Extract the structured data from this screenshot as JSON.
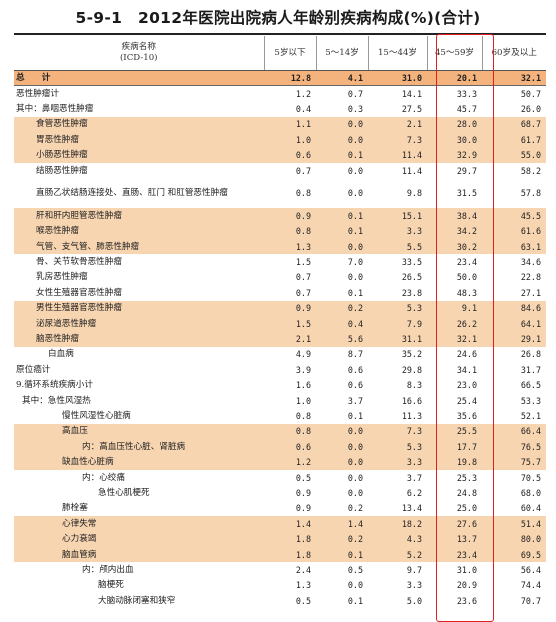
{
  "title": "5-9-1　2012年医院出院病人年龄别疾病构成(%)(合计)",
  "header": {
    "name_col": "疾病名称\n(ICD-10)",
    "age_cols": [
      "5岁以下",
      "5～14岁",
      "15～44岁",
      "45～59岁",
      "60岁及以上"
    ]
  },
  "rows": [
    {
      "name": "总　　计",
      "indent": 0,
      "style": "total",
      "values": [
        "12.8",
        "4.1",
        "31.0",
        "20.1",
        "32.1"
      ]
    },
    {
      "name": "恶性肿瘤计",
      "indent": 0,
      "style": "",
      "values": [
        "1.2",
        "0.7",
        "14.1",
        "33.3",
        "50.7"
      ]
    },
    {
      "name": "其中：鼻咽恶性肿瘤",
      "indent": 0,
      "style": "",
      "values": [
        "0.4",
        "0.3",
        "27.5",
        "45.7",
        "26.0"
      ]
    },
    {
      "name": "食管恶性肿瘤",
      "indent": 2,
      "style": "hl",
      "values": [
        "1.1",
        "0.0",
        "2.1",
        "28.0",
        "68.7"
      ]
    },
    {
      "name": "胃恶性肿瘤",
      "indent": 2,
      "style": "hl",
      "values": [
        "1.0",
        "0.0",
        "7.3",
        "30.0",
        "61.7"
      ]
    },
    {
      "name": "小肠恶性肿瘤",
      "indent": 2,
      "style": "hl",
      "values": [
        "0.6",
        "0.1",
        "11.4",
        "32.9",
        "55.0"
      ]
    },
    {
      "name": "结肠恶性肿瘤",
      "indent": 2,
      "style": "",
      "values": [
        "0.7",
        "0.0",
        "11.4",
        "29.7",
        "58.2"
      ]
    },
    {
      "name": "直肠乙状结肠连接处、直肠、肛门\n和肛管恶性肿瘤",
      "indent": 2,
      "style": "tall",
      "values": [
        "0.8",
        "0.0",
        "9.8",
        "31.5",
        "57.8"
      ]
    },
    {
      "name": "肝和肝内胆管恶性肿瘤",
      "indent": 2,
      "style": "hl",
      "values": [
        "0.9",
        "0.1",
        "15.1",
        "38.4",
        "45.5"
      ]
    },
    {
      "name": "喉恶性肿瘤",
      "indent": 2,
      "style": "hl",
      "values": [
        "0.8",
        "0.1",
        "3.3",
        "34.2",
        "61.6"
      ]
    },
    {
      "name": "气管、支气管、肺恶性肿瘤",
      "indent": 2,
      "style": "hl",
      "values": [
        "1.3",
        "0.0",
        "5.5",
        "30.2",
        "63.1"
      ]
    },
    {
      "name": "骨、关节软骨恶性肿瘤",
      "indent": 2,
      "style": "",
      "values": [
        "1.5",
        "7.0",
        "33.5",
        "23.4",
        "34.6"
      ]
    },
    {
      "name": "乳房恶性肿瘤",
      "indent": 2,
      "style": "",
      "values": [
        "0.7",
        "0.0",
        "26.5",
        "50.0",
        "22.8"
      ]
    },
    {
      "name": "女性生殖器官恶性肿瘤",
      "indent": 2,
      "style": "",
      "values": [
        "0.7",
        "0.1",
        "23.8",
        "48.3",
        "27.1"
      ]
    },
    {
      "name": "男性生殖器官恶性肿瘤",
      "indent": 2,
      "style": "hl",
      "values": [
        "0.9",
        "0.2",
        "5.3",
        "9.1",
        "84.6"
      ]
    },
    {
      "name": "泌尿道恶性肿瘤",
      "indent": 2,
      "style": "hl",
      "values": [
        "1.5",
        "0.4",
        "7.9",
        "26.2",
        "64.1"
      ]
    },
    {
      "name": "脑恶性肿瘤",
      "indent": 2,
      "style": "hl",
      "values": [
        "2.1",
        "5.6",
        "31.1",
        "32.1",
        "29.1"
      ]
    },
    {
      "name": "白血病",
      "indent": 3,
      "style": "",
      "values": [
        "4.9",
        "8.7",
        "35.2",
        "24.6",
        "26.8"
      ]
    },
    {
      "name": "原位癌计",
      "indent": 0,
      "style": "",
      "values": [
        "3.9",
        "0.6",
        "29.8",
        "34.1",
        "31.7"
      ]
    },
    {
      "name": "9.循环系统疾病小计",
      "indent": 0,
      "style": "",
      "values": [
        "1.6",
        "0.6",
        "8.3",
        "23.0",
        "66.5"
      ]
    },
    {
      "name": "其中：急性风湿热",
      "indent": 1,
      "style": "",
      "values": [
        "1.0",
        "3.7",
        "16.6",
        "25.4",
        "53.3"
      ]
    },
    {
      "name": "慢性风湿性心脏病",
      "indent": 4,
      "style": "",
      "values": [
        "0.8",
        "0.1",
        "11.3",
        "35.6",
        "52.1"
      ]
    },
    {
      "name": "高血压",
      "indent": 4,
      "style": "hl",
      "values": [
        "0.8",
        "0.0",
        "7.3",
        "25.5",
        "66.4"
      ]
    },
    {
      "name": "内：高血压性心脏、肾脏病",
      "indent": 5,
      "style": "hl",
      "values": [
        "0.6",
        "0.0",
        "5.3",
        "17.7",
        "76.5"
      ]
    },
    {
      "name": "缺血性心脏病",
      "indent": 4,
      "style": "hl",
      "values": [
        "1.2",
        "0.0",
        "3.3",
        "19.8",
        "75.7"
      ]
    },
    {
      "name": "内：心绞痛",
      "indent": 5,
      "style": "",
      "values": [
        "0.5",
        "0.0",
        "3.7",
        "25.3",
        "70.5"
      ]
    },
    {
      "name": "急性心肌梗死",
      "indent": 6,
      "style": "",
      "values": [
        "0.9",
        "0.0",
        "6.2",
        "24.8",
        "68.0"
      ]
    },
    {
      "name": "肺栓塞",
      "indent": 4,
      "style": "",
      "values": [
        "0.9",
        "0.2",
        "13.4",
        "25.0",
        "60.4"
      ]
    },
    {
      "name": "心律失常",
      "indent": 4,
      "style": "hl",
      "values": [
        "1.4",
        "1.4",
        "18.2",
        "27.6",
        "51.4"
      ]
    },
    {
      "name": "心力衰竭",
      "indent": 4,
      "style": "hl",
      "values": [
        "1.8",
        "0.2",
        "4.3",
        "13.7",
        "80.0"
      ]
    },
    {
      "name": "脑血管病",
      "indent": 4,
      "style": "hl",
      "values": [
        "1.8",
        "0.1",
        "5.2",
        "23.4",
        "69.5"
      ]
    },
    {
      "name": "内：颅内出血",
      "indent": 5,
      "style": "",
      "values": [
        "2.4",
        "0.5",
        "9.7",
        "31.0",
        "56.4"
      ]
    },
    {
      "name": "脑梗死",
      "indent": 6,
      "style": "",
      "values": [
        "1.3",
        "0.0",
        "3.3",
        "20.9",
        "74.4"
      ]
    },
    {
      "name": "大脑动脉闭塞和狭窄",
      "indent": 6,
      "style": "",
      "values": [
        "0.5",
        "0.1",
        "5.0",
        "23.6",
        "70.7"
      ]
    }
  ]
}
